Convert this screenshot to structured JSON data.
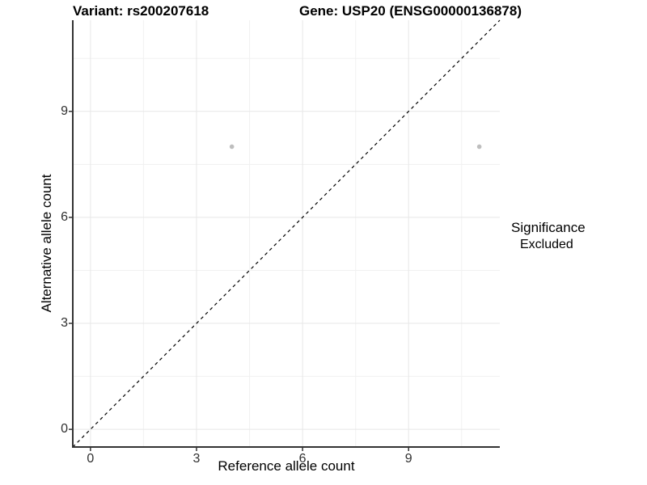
{
  "title": {
    "variant": "Variant: rs200207618",
    "gene": "Gene: USP20 (ENSG00000136878)"
  },
  "chart_data": {
    "type": "scatter",
    "xlabel": "Reference allele count",
    "ylabel": "Alternative allele count",
    "x_ticks": [
      0,
      3,
      6,
      9
    ],
    "y_ticks": [
      0,
      3,
      6,
      9
    ],
    "x_minor_ticks": [
      1.5,
      4.5,
      7.5,
      10.5
    ],
    "y_minor_ticks": [
      1.5,
      4.5,
      7.5,
      10.5
    ],
    "xlim": [
      -0.5,
      11.58
    ],
    "ylim": [
      -0.5,
      11.58
    ],
    "grid": {
      "major_color": "#e7e7e7",
      "minor_color": "#f1f1f1"
    },
    "axis_color": "#333333",
    "reference_line": {
      "type": "identity",
      "style": "dashed",
      "color": "#000000"
    },
    "series": [
      {
        "name": "Excluded",
        "color": "#bebebe",
        "points": [
          {
            "x": 4,
            "y": 8
          },
          {
            "x": 11,
            "y": 8
          }
        ]
      }
    ]
  },
  "legend": {
    "title": "Significance",
    "items": [
      {
        "label": "Excluded",
        "color": "#bebebe"
      }
    ]
  }
}
